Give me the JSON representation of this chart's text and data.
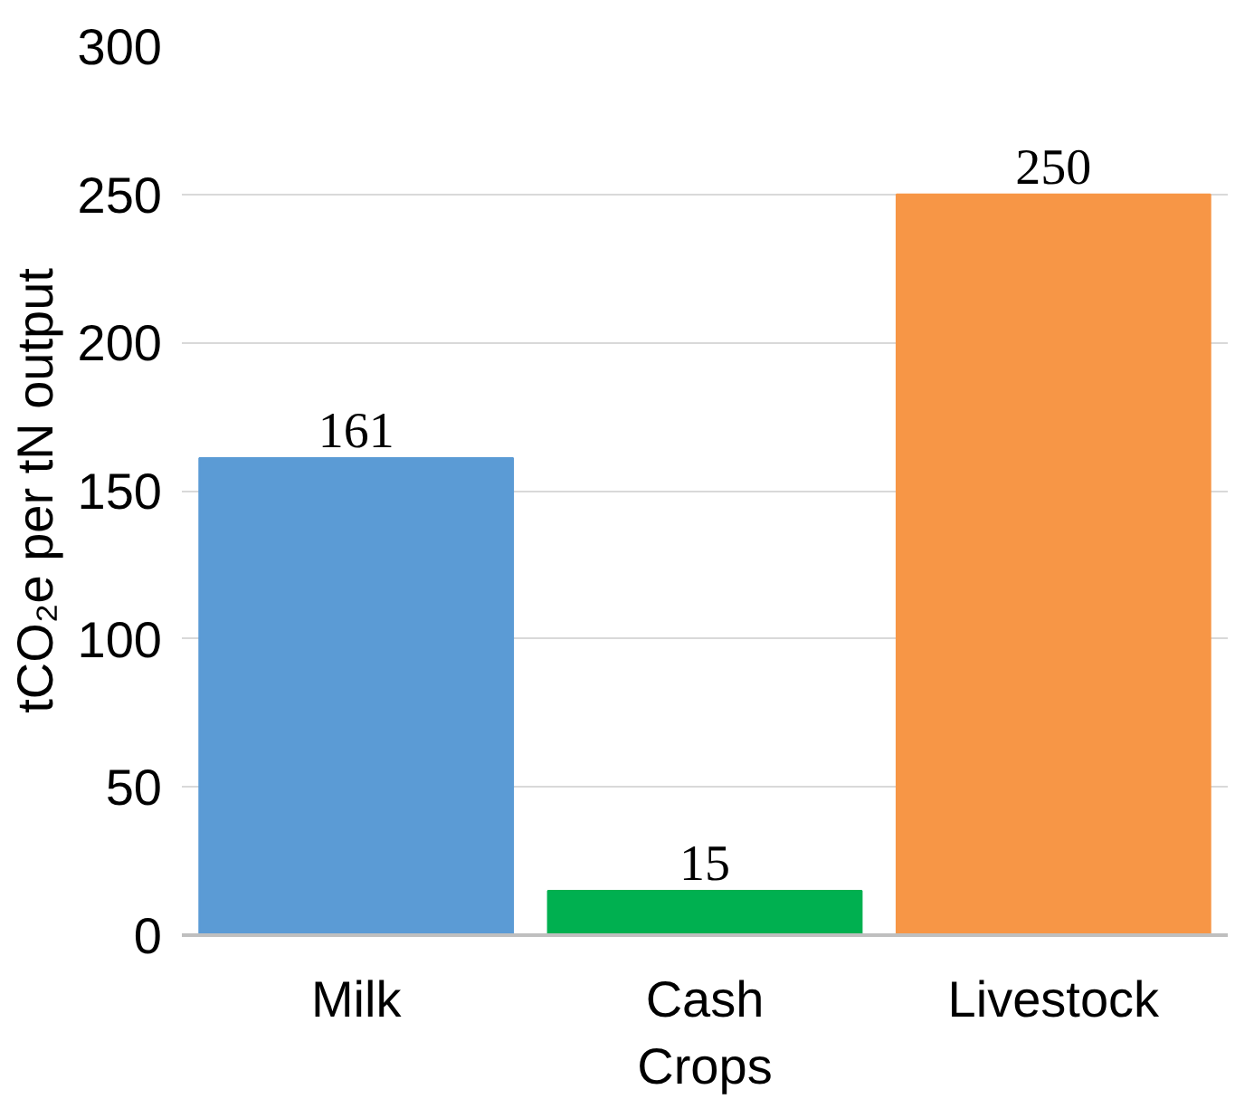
{
  "chart_data": {
    "type": "bar",
    "ylabel": "tCO₂e per tN output",
    "categories": [
      "Milk",
      "Cash Crops",
      "Livestock"
    ],
    "values": [
      161,
      15,
      250
    ],
    "colors": [
      "#5b9bd5",
      "#00b050",
      "#f79646"
    ],
    "ylim": [
      0,
      300
    ],
    "yticks": [
      0,
      50,
      100,
      150,
      200,
      250,
      300
    ],
    "grid": "y",
    "data_labels": true
  }
}
